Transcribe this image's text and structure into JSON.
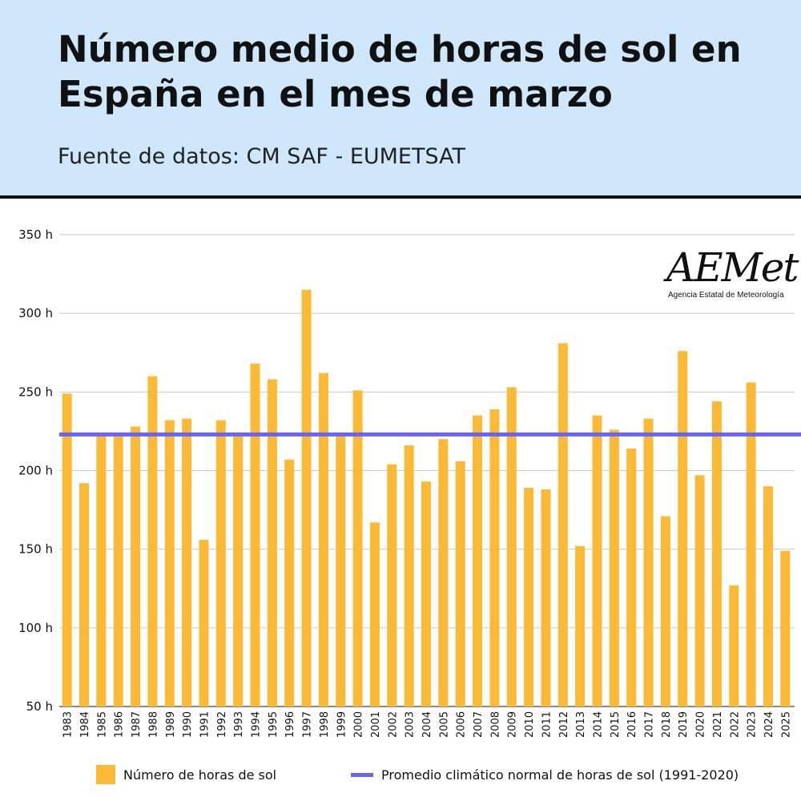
{
  "header": {
    "title": "Número medio de horas de sol en España en el mes de marzo",
    "subtitle": "Fuente de datos: CM SAF - EUMETSAT"
  },
  "logo": {
    "mark": "AEMet",
    "text": "Agencia Estatal de Meteorología"
  },
  "colors": {
    "header_bg": "#cfe7fb",
    "bar": "#fbb935",
    "normal_line": "#6666ee"
  },
  "chart_data": {
    "type": "bar",
    "title": "Número medio de horas de sol en España en el mes de marzo",
    "xlabel": "",
    "ylabel": "",
    "ylim": [
      50,
      350
    ],
    "yticks": [
      50,
      100,
      150,
      200,
      250,
      300,
      350
    ],
    "ytick_suffix": " h",
    "grid": true,
    "legend_position": "bottom",
    "categories": [
      "1983",
      "1984",
      "1985",
      "1986",
      "1987",
      "1988",
      "1989",
      "1990",
      "1991",
      "1992",
      "1993",
      "1994",
      "1995",
      "1996",
      "1997",
      "1998",
      "1999",
      "2000",
      "2001",
      "2002",
      "2003",
      "2004",
      "2005",
      "2006",
      "2007",
      "2008",
      "2009",
      "2010",
      "2011",
      "2012",
      "2013",
      "2014",
      "2015",
      "2016",
      "2017",
      "2018",
      "2019",
      "2020",
      "2021",
      "2022",
      "2023",
      "2024",
      "2025"
    ],
    "series": [
      {
        "name": "Número de horas de sol",
        "type": "bar",
        "values": [
          249,
          192,
          222,
          222,
          228,
          260,
          232,
          233,
          156,
          232,
          222,
          268,
          258,
          207,
          315,
          262,
          222,
          251,
          167,
          204,
          216,
          193,
          220,
          206,
          235,
          239,
          253,
          189,
          188,
          281,
          152,
          235,
          226,
          214,
          233,
          171,
          276,
          197,
          244,
          127,
          256,
          190,
          149
        ]
      },
      {
        "name": "Promedio climático normal de horas de sol (1991-2020)",
        "type": "line",
        "value": 223
      }
    ]
  }
}
